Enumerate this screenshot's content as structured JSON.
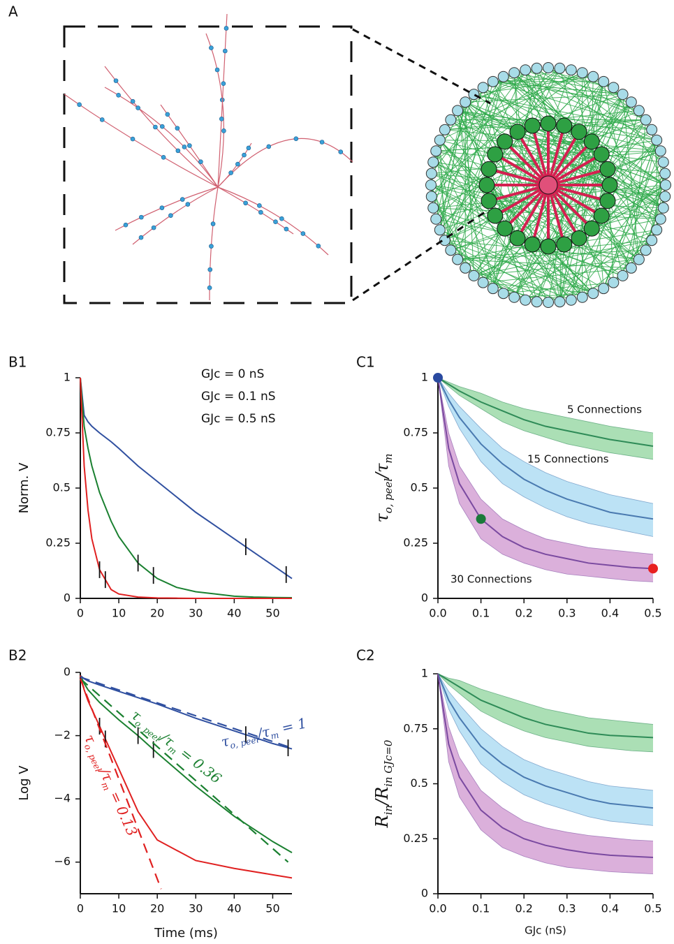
{
  "diagram": {
    "label": "A"
  },
  "chart_data": [
    {
      "type": "line",
      "label": "B1",
      "ylabel": {
        "parts": [
          "Norm. V"
        ]
      },
      "xlim": [
        0,
        55
      ],
      "xticks": [
        0,
        10,
        20,
        30,
        40,
        50
      ],
      "ylim": [
        0,
        1
      ],
      "yticks": [
        0,
        0.25,
        0.5,
        0.75,
        1
      ],
      "legend": "upper right",
      "x": [
        0,
        1,
        2,
        3,
        5,
        8,
        10,
        15,
        20,
        25,
        30,
        35,
        40,
        45,
        50,
        55
      ],
      "series": [
        {
          "name": "GJc = 0 nS",
          "color": "#3050a0",
          "values": [
            1,
            0.83,
            0.8,
            0.78,
            0.75,
            0.71,
            0.68,
            0.6,
            0.53,
            0.46,
            0.39,
            0.33,
            0.27,
            0.21,
            0.15,
            0.09
          ],
          "window": [
            43,
            53.5
          ]
        },
        {
          "name": "GJc = 0.1 nS",
          "color": "#1a8030",
          "values": [
            1,
            0.78,
            0.68,
            0.6,
            0.48,
            0.35,
            0.28,
            0.16,
            0.09,
            0.05,
            0.03,
            0.02,
            0.01,
            0.006,
            0.004,
            0.003
          ],
          "window": [
            15,
            19
          ]
        },
        {
          "name": "GJc = 0.5 nS",
          "color": "#e02020",
          "values": [
            1,
            0.6,
            0.4,
            0.27,
            0.13,
            0.04,
            0.02,
            0.006,
            0.002,
            0.001,
            0,
            0,
            0,
            0,
            0,
            0
          ],
          "window": [
            5,
            6.5
          ]
        }
      ]
    },
    {
      "type": "line",
      "label": "B2",
      "xlabel": "Time (ms)",
      "ylabel": {
        "parts": [
          "Log V"
        ]
      },
      "xlim": [
        0,
        55
      ],
      "xticks": [
        0,
        10,
        20,
        30,
        40,
        50
      ],
      "ylim": [
        -7,
        0
      ],
      "yticks": [
        {
          "value": -6,
          "label": "−6"
        },
        {
          "value": -4,
          "label": "−4"
        },
        {
          "value": -2,
          "label": "−2"
        },
        0
      ],
      "x": [
        0,
        1,
        2,
        5,
        10,
        15,
        20,
        30,
        40,
        50,
        55
      ],
      "series": [
        {
          "color": "#3050a0",
          "values": [
            -0.1,
            -0.2,
            -0.27,
            -0.4,
            -0.6,
            -0.8,
            -1.0,
            -1.45,
            -1.85,
            -2.25,
            -2.42
          ],
          "window": [
            43,
            54
          ]
        },
        {
          "color": "#1a8030",
          "values": [
            -0.1,
            -0.35,
            -0.55,
            -0.95,
            -1.5,
            -2.0,
            -2.55,
            -3.6,
            -4.55,
            -5.35,
            -5.7
          ],
          "window": [
            15,
            19
          ]
        },
        {
          "color": "#e02020",
          "values": [
            -0.1,
            -0.55,
            -0.9,
            -1.7,
            -3.05,
            -4.4,
            -5.3,
            -5.95,
            -6.2,
            -6.4,
            -6.5
          ],
          "window": [
            5,
            6.5
          ]
        },
        {
          "color": "#3050a0",
          "dash": true,
          "x": [
            0,
            54
          ],
          "values": [
            -0.15,
            -2.35
          ]
        },
        {
          "color": "#1a8030",
          "dash": true,
          "x": [
            0,
            54
          ],
          "values": [
            -0.2,
            -6.0
          ]
        },
        {
          "color": "#e02020",
          "dash": true,
          "x": [
            0,
            21
          ],
          "values": [
            -0.2,
            -6.85
          ]
        }
      ],
      "annotations": [
        {
          "parts": [
            "τ",
            "o, peel",
            "/τ",
            "m",
            " = 1"
          ],
          "color": "#3050a0"
        },
        {
          "parts": [
            "τ",
            "o, peel",
            "/τ",
            "m",
            " = 0.36"
          ],
          "color": "#1a8030"
        },
        {
          "parts": [
            "τ",
            "o, peel",
            "/τ",
            "m",
            " = 0.13"
          ],
          "color": "#e02020"
        }
      ]
    },
    {
      "type": "band",
      "label": "C1",
      "ylabel": {
        "parts": [
          "τ",
          "o, peel",
          "/τ",
          "m"
        ]
      },
      "xlim": [
        0,
        0.5
      ],
      "xticks": [
        {
          "value": 0,
          "label": "0.0"
        },
        0.1,
        0.2,
        0.3,
        0.4,
        0.5
      ],
      "ylim": [
        0,
        1
      ],
      "yticks": [
        0,
        0.25,
        0.5,
        0.75,
        1
      ],
      "x": [
        0,
        0.025,
        0.05,
        0.1,
        0.15,
        0.2,
        0.25,
        0.3,
        0.35,
        0.4,
        0.45,
        0.5
      ],
      "series": [
        {
          "name": "5 Connections",
          "color": "#2e8b57",
          "band_color": "#8fd49c",
          "label_color": "#3a9a5a",
          "values": [
            1,
            0.97,
            0.94,
            0.89,
            0.85,
            0.81,
            0.78,
            0.76,
            0.74,
            0.72,
            0.705,
            0.69
          ],
          "upper": [
            1,
            0.98,
            0.96,
            0.93,
            0.89,
            0.86,
            0.84,
            0.82,
            0.8,
            0.78,
            0.765,
            0.75
          ],
          "lower": [
            1,
            0.96,
            0.92,
            0.86,
            0.8,
            0.76,
            0.73,
            0.7,
            0.68,
            0.66,
            0.645,
            0.63
          ]
        },
        {
          "name": "15 Connections",
          "color": "#4a7ab0",
          "band_color": "#a6d8f2",
          "label_color": "#5a90c8",
          "values": [
            1,
            0.9,
            0.82,
            0.7,
            0.61,
            0.54,
            0.49,
            0.45,
            0.42,
            0.39,
            0.375,
            0.36
          ],
          "upper": [
            1,
            0.93,
            0.87,
            0.77,
            0.68,
            0.62,
            0.57,
            0.53,
            0.5,
            0.47,
            0.45,
            0.43
          ],
          "lower": [
            1,
            0.87,
            0.77,
            0.62,
            0.52,
            0.46,
            0.41,
            0.37,
            0.34,
            0.32,
            0.3,
            0.28
          ]
        },
        {
          "name": "30 Connections",
          "color": "#7a4aa0",
          "band_color": "#cf96cf",
          "label_color": "#9050a8",
          "values": [
            1,
            0.68,
            0.52,
            0.36,
            0.28,
            0.23,
            0.2,
            0.18,
            0.16,
            0.15,
            0.14,
            0.135
          ],
          "upper": [
            1,
            0.75,
            0.6,
            0.45,
            0.36,
            0.31,
            0.27,
            0.25,
            0.23,
            0.22,
            0.21,
            0.2
          ],
          "lower": [
            1,
            0.6,
            0.43,
            0.27,
            0.2,
            0.16,
            0.13,
            0.11,
            0.1,
            0.09,
            0.08,
            0.075
          ]
        }
      ],
      "points": [
        {
          "x": 0,
          "y": 1,
          "color": "#2a4aa0"
        },
        {
          "x": 0.1,
          "y": 0.36,
          "color": "#1a7a3a"
        },
        {
          "x": 0.5,
          "y": 0.135,
          "color": "#e82020"
        }
      ]
    },
    {
      "type": "band",
      "label": "C2",
      "xlabel": "GJc (nS)",
      "ylabel": {
        "parts": [
          "R",
          "in",
          "/R",
          "in GJc=0"
        ]
      },
      "xlim": [
        0,
        0.5
      ],
      "xticks": [
        {
          "value": 0,
          "label": "0.0"
        },
        0.1,
        0.2,
        0.3,
        0.4,
        0.5
      ],
      "ylim": [
        0,
        1
      ],
      "yticks": [
        0,
        0.25,
        0.5,
        0.75,
        1
      ],
      "x": [
        0,
        0.025,
        0.05,
        0.1,
        0.15,
        0.2,
        0.25,
        0.3,
        0.35,
        0.4,
        0.45,
        0.5
      ],
      "series": [
        {
          "color": "#2e8b57",
          "band_color": "#8fd49c",
          "values": [
            1,
            0.97,
            0.94,
            0.88,
            0.84,
            0.8,
            0.77,
            0.75,
            0.73,
            0.72,
            0.715,
            0.71
          ],
          "upper": [
            1,
            0.98,
            0.97,
            0.93,
            0.9,
            0.87,
            0.84,
            0.82,
            0.8,
            0.79,
            0.78,
            0.77
          ],
          "lower": [
            1,
            0.95,
            0.91,
            0.83,
            0.78,
            0.74,
            0.71,
            0.69,
            0.67,
            0.66,
            0.65,
            0.645
          ]
        },
        {
          "color": "#4a7ab0",
          "band_color": "#a6d8f2",
          "values": [
            1,
            0.88,
            0.8,
            0.67,
            0.59,
            0.53,
            0.49,
            0.46,
            0.43,
            0.41,
            0.4,
            0.39
          ],
          "upper": [
            1,
            0.92,
            0.86,
            0.75,
            0.67,
            0.61,
            0.57,
            0.54,
            0.51,
            0.49,
            0.48,
            0.47
          ],
          "lower": [
            1,
            0.84,
            0.74,
            0.59,
            0.51,
            0.45,
            0.41,
            0.38,
            0.35,
            0.33,
            0.32,
            0.31
          ]
        },
        {
          "color": "#7a4aa0",
          "band_color": "#cf96cf",
          "values": [
            1,
            0.68,
            0.53,
            0.38,
            0.3,
            0.25,
            0.22,
            0.2,
            0.185,
            0.175,
            0.17,
            0.165
          ],
          "upper": [
            1,
            0.76,
            0.62,
            0.47,
            0.39,
            0.33,
            0.3,
            0.28,
            0.265,
            0.255,
            0.245,
            0.24
          ],
          "lower": [
            1,
            0.6,
            0.44,
            0.29,
            0.21,
            0.17,
            0.14,
            0.12,
            0.11,
            0.1,
            0.095,
            0.09
          ]
        }
      ]
    }
  ]
}
